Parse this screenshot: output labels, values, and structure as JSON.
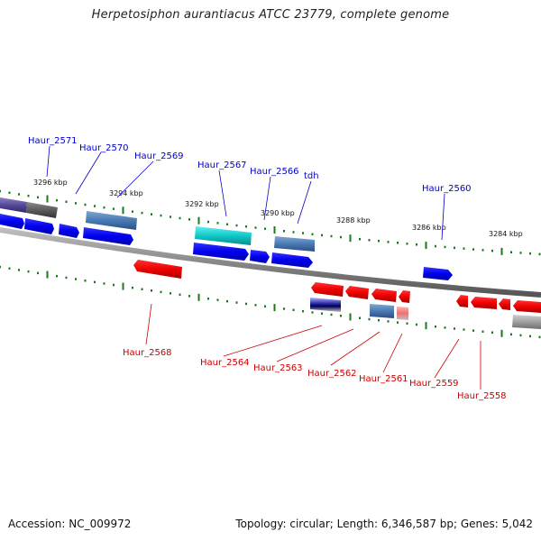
{
  "title": "Herpetosiphon aurantiacus ATCC 23779, complete genome",
  "footer": {
    "accession": "Accession: NC_009972",
    "summary": "Topology: circular; Length: 6,346,587 bp; Genes: 5,042"
  },
  "ticks": [
    "3296 kbp",
    "3294 kbp",
    "3292 kbp",
    "3290 kbp",
    "3288 kbp",
    "3286 kbp",
    "3284 kbp"
  ],
  "genes_top": [
    {
      "name": "Haur_2571",
      "color": "#0000cc"
    },
    {
      "name": "Haur_2570",
      "color": "#0000cc"
    },
    {
      "name": "Haur_2569",
      "color": "#0000cc"
    },
    {
      "name": "Haur_2567",
      "color": "#0000cc"
    },
    {
      "name": "Haur_2566",
      "color": "#0000cc"
    },
    {
      "name": "tdh",
      "color": "#0000cc"
    },
    {
      "name": "Haur_2560",
      "color": "#0000cc"
    }
  ],
  "genes_bottom": [
    {
      "name": "Haur_2568",
      "color": "#cc0000"
    },
    {
      "name": "Haur_2564",
      "color": "#cc0000"
    },
    {
      "name": "Haur_2563",
      "color": "#cc0000"
    },
    {
      "name": "Haur_2562",
      "color": "#cc0000"
    },
    {
      "name": "Haur_2561",
      "color": "#cc0000"
    },
    {
      "name": "Haur_2559",
      "color": "#cc0000"
    },
    {
      "name": "Haur_2558",
      "color": "#cc0000"
    }
  ],
  "colors": {
    "forward": "#0000ee",
    "reverse": "#ee0000",
    "tick": "#1a7a1a",
    "backbone": "#888888"
  }
}
